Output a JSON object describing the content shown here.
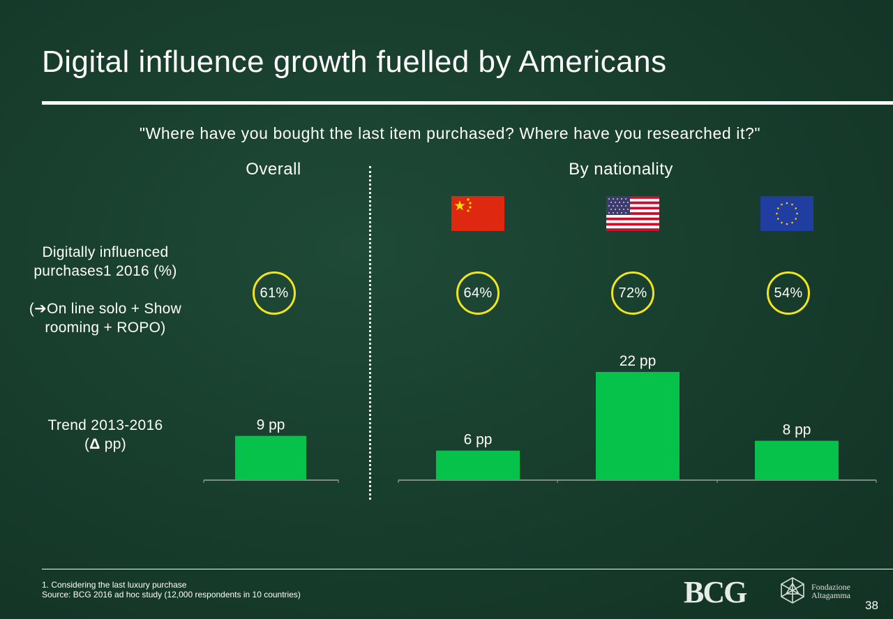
{
  "title": "Digital influence growth fuelled by Americans",
  "question": "\"Where have you bought the last item purchased? Where have you researched it?\"",
  "headers": {
    "overall": "Overall",
    "by_nationality": "By nationality"
  },
  "row_labels": {
    "row1_line1": "Digitally influenced",
    "row1_line2": "purchases1 2016 (%)",
    "row1_line3_arrow": "➔",
    "row1_line3": "On line solo + Show",
    "row1_line4": "rooming + ROPO)",
    "row2_line1": "Trend 2013-2016",
    "row2_line2_prefix": "(",
    "row2_line2_delta": "Δ",
    "row2_line2_suffix": " pp)"
  },
  "flags": [
    {
      "icon": "china-flag-icon"
    },
    {
      "icon": "usa-flag-icon"
    },
    {
      "icon": "eu-flag-icon"
    }
  ],
  "chart_data": {
    "type": "bar",
    "categories": [
      "Overall",
      "China",
      "USA",
      "Europe"
    ],
    "share_2016_percent": [
      61,
      64,
      72,
      54
    ],
    "share_labels": [
      "61%",
      "64%",
      "72%",
      "54%"
    ],
    "values": [
      9,
      6,
      22,
      8
    ],
    "value_labels": [
      "9 pp",
      "6 pp",
      "22 pp",
      "8 pp"
    ],
    "ylim": [
      0,
      22
    ],
    "bar_color": "#06c14a",
    "circle_color": "#f2e51d",
    "grid": false
  },
  "footnote": {
    "note": "1. Considering the last luxury purchase",
    "source": "Source: BCG 2016 ad hoc study (12,000 respondents in 10 countries)"
  },
  "logos": {
    "bcg": "BCG",
    "fondazione_line1": "Fondazione",
    "fondazione_line2": "Altagamma"
  },
  "page_number": "38"
}
